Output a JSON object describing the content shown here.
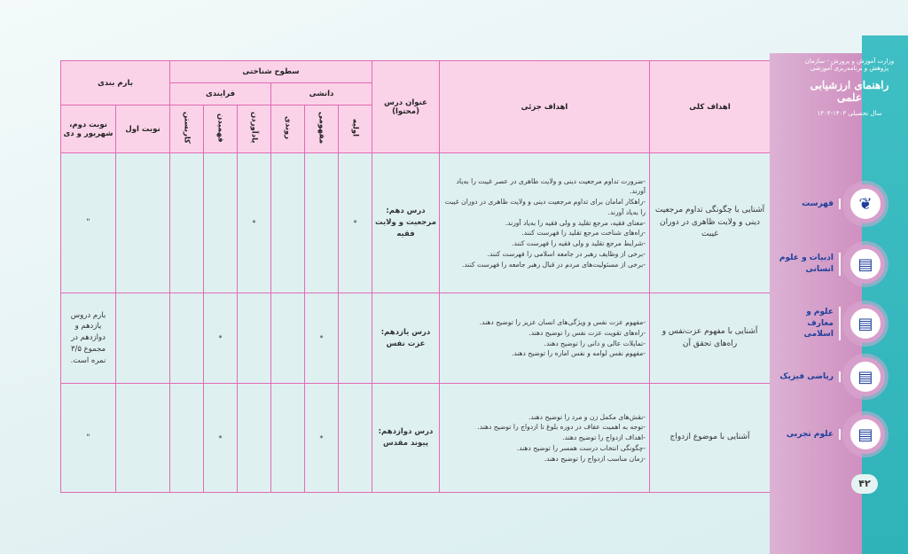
{
  "table": {
    "headers": {
      "general_goals": "اهداف کلی",
      "detailed_goals": "اهداف جزئی",
      "lesson_title": "عنوان درس (محتوا)",
      "cognitive_levels": "سطوح شناختی",
      "knowledge": "دانشی",
      "process": "فرایندی",
      "basic": "اولیه",
      "conceptual": "مفهومی",
      "procedural": "روندی",
      "remembering": "یادآوردن",
      "understanding": "فهمیدن",
      "applying": "کاربستن",
      "scoring": "بارم بندی",
      "first_term": "نوبت اول",
      "second_term": "نوبت دوم، شهریور و دی"
    },
    "rows": [
      {
        "general": "آشنایی با چگونگی تداوم مرجعیت دینی و ولایت ظاهری در دوران غیبت",
        "details": [
          "-ضرورت تداوم مرجعیت دینی و ولایت ظاهری در عصر غیبت را به‌یاد آورند.",
          "-راهکار امامان برای تداوم مرجعیت دینی و ولایت ظاهری در دوران غیبت را به‌یاد آورند.",
          "-معنای فقیه، مرجع تقلید و ولی فقیه را به‌یاد آورند.",
          "-راه‌های شناخت مرجع تقلید را فهرست کنند.",
          "-شرایط مرجع تقلید و ولی فقیه را فهرست کنند.",
          "-برخی از وظایف رهبر در جامعه اسلامی را فهرست کنند.",
          "-برخی از مسئولیت‌های مردم در قبال رهبر جامعه را فهرست کنند."
        ],
        "title": "درس دهم: مرجعیت و ولایت فقیه",
        "basic": "*",
        "conceptual": "",
        "procedural": "",
        "remembering": "*",
        "understanding": "",
        "applying": "",
        "first_term": "",
        "second_term": "\""
      },
      {
        "general": "آشنایی با مفهوم عزت‌نفس و راه‌های تحقق آن",
        "details": [
          "-مفهوم عزت نفس و ویژگی‌های انسان عزیز را توضیح دهند.",
          "-راه‌های تقویت عزت نفس را توضیح دهند.",
          "-تمایلات عالی و دانی را توضیح دهند.",
          "-مفهوم نفس لوامه و نفس اماره را توضیح دهند."
        ],
        "title": "درس یازدهم: عزت نفس",
        "basic": "",
        "conceptual": "*",
        "procedural": "",
        "remembering": "",
        "understanding": "*",
        "applying": "",
        "first_term": "",
        "second_term": "بارم دروس یازدهم و دوازدهم در مجموع ۳/۵ نمره است."
      },
      {
        "general": "آشنایی با موضوع ازدواج",
        "details": [
          "-نقش‌های مکمل زن و مرد را توضیح دهند.",
          "-توجه به اهمیت عفاف در دوره بلوغ تا ازدواج را توضیح دهند.",
          "-اهداف ازدواج را توضیح دهند.",
          "-چگونگی انتخاب درست همسر را توضیح دهند.",
          "-زمان مناسب ازدواج را توضیح دهند."
        ],
        "title": "درس دوازدهم: پیوند مقدس",
        "basic": "",
        "conceptual": "*",
        "procedural": "",
        "remembering": "",
        "understanding": "*",
        "applying": "",
        "first_term": "",
        "second_term": "\""
      }
    ]
  },
  "sidebar": {
    "logo_text": "وزارت آموزش و پرورش - سازمان پژوهش و برنامه‌ریزی آموزشی",
    "brand": "راهنمای ارزشیابی علمی",
    "year": "سال تحصیلی ۱۴۰۳-۱۴۰۴",
    "items": [
      {
        "label": "فهرست",
        "icon": "leaf-icon"
      },
      {
        "label": "ادبیات و علوم انسانی",
        "icon": "document-icon"
      },
      {
        "label": "علوم و معارف اسلامی",
        "icon": "document-icon"
      },
      {
        "label": "ریاضی فیزیک",
        "icon": "document-icon"
      },
      {
        "label": "علوم تجربی",
        "icon": "document-icon"
      }
    ],
    "page_number": "۴۲"
  },
  "colors": {
    "border": "#e26bb3",
    "header_bg": "#fbd3e8",
    "cell_bg": "#dff0f1",
    "nav_text": "#1d3f9a",
    "teal": "#3fbfc4",
    "pink": "#cf8fc0"
  }
}
